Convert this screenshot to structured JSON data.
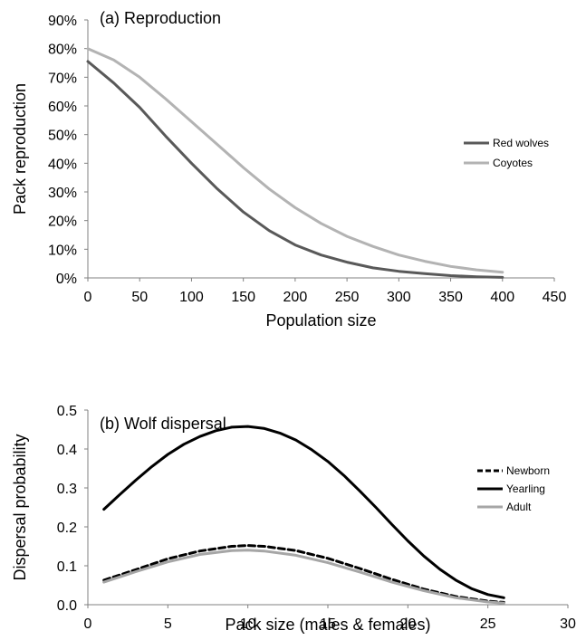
{
  "chart_data": [
    {
      "type": "line",
      "title": "(a) Reproduction",
      "xlabel": "Population size",
      "ylabel": "Pack reproduction",
      "xlim": [
        0,
        450
      ],
      "ylim": [
        0,
        90
      ],
      "x_ticks": [
        "0",
        "50",
        "100",
        "150",
        "200",
        "250",
        "300",
        "350",
        "400",
        "450"
      ],
      "y_ticks": [
        "0%",
        "10%",
        "20%",
        "30%",
        "40%",
        "50%",
        "60%",
        "70%",
        "80%",
        "90%"
      ],
      "grid": false,
      "legend_position": "right",
      "series": [
        {
          "name": "Red wolves",
          "color": "#595959",
          "dash": "solid",
          "x": [
            0,
            25,
            50,
            75,
            100,
            125,
            150,
            175,
            200,
            225,
            250,
            275,
            300,
            325,
            350,
            375,
            400
          ],
          "y": [
            75.5,
            68,
            59.5,
            49.5,
            40,
            31,
            23,
            16.5,
            11.5,
            8,
            5.5,
            3.5,
            2.3,
            1.5,
            0.8,
            0.4,
            0.2
          ]
        },
        {
          "name": "Coyotes",
          "color": "#b3b3b3",
          "dash": "solid",
          "x": [
            0,
            25,
            50,
            75,
            100,
            125,
            150,
            175,
            200,
            225,
            250,
            275,
            300,
            325,
            350,
            375,
            400
          ],
          "y": [
            80,
            76,
            70,
            62.5,
            54.5,
            46.5,
            38.5,
            31,
            24.5,
            19,
            14.5,
            11,
            8,
            5.8,
            4,
            2.8,
            2
          ]
        }
      ]
    },
    {
      "type": "line",
      "title": "(b) Wolf dispersal",
      "xlabel": "Pack size (males & females)",
      "ylabel": "Dispersal probability",
      "xlim": [
        0,
        30
      ],
      "ylim": [
        0,
        0.5
      ],
      "x_ticks": [
        "0",
        "5",
        "10",
        "15",
        "20",
        "25",
        "30"
      ],
      "y_ticks": [
        "0.0",
        "0.1",
        "0.2",
        "0.3",
        "0.4",
        "0.5"
      ],
      "grid": false,
      "legend_position": "right",
      "series": [
        {
          "name": "Newborn",
          "color": "#000000",
          "dash": "dashed",
          "x": [
            1,
            3,
            5,
            7,
            9,
            10,
            11,
            13,
            15,
            17,
            19,
            21,
            23,
            25,
            26
          ],
          "y": [
            0.063,
            0.09,
            0.118,
            0.138,
            0.15,
            0.152,
            0.15,
            0.139,
            0.119,
            0.093,
            0.065,
            0.04,
            0.021,
            0.009,
            0.006
          ]
        },
        {
          "name": "Yearling",
          "color": "#000000",
          "dash": "solid",
          "x": [
            1,
            2,
            3,
            4,
            5,
            6,
            7,
            8,
            9,
            10,
            11,
            12,
            13,
            14,
            15,
            16,
            17,
            18,
            19,
            20,
            21,
            22,
            23,
            24,
            25,
            26
          ],
          "y": [
            0.245,
            0.283,
            0.32,
            0.355,
            0.386,
            0.412,
            0.432,
            0.447,
            0.456,
            0.458,
            0.453,
            0.441,
            0.423,
            0.398,
            0.368,
            0.332,
            0.292,
            0.25,
            0.206,
            0.164,
            0.125,
            0.091,
            0.063,
            0.041,
            0.026,
            0.018
          ]
        },
        {
          "name": "Adult",
          "color": "#a6a6a6",
          "dash": "solid",
          "x": [
            1,
            3,
            5,
            7,
            9,
            10,
            11,
            13,
            15,
            17,
            19,
            21,
            23,
            25,
            26
          ],
          "y": [
            0.058,
            0.085,
            0.11,
            0.129,
            0.139,
            0.14,
            0.138,
            0.127,
            0.108,
            0.084,
            0.058,
            0.036,
            0.018,
            0.007,
            0.004
          ]
        }
      ]
    }
  ]
}
